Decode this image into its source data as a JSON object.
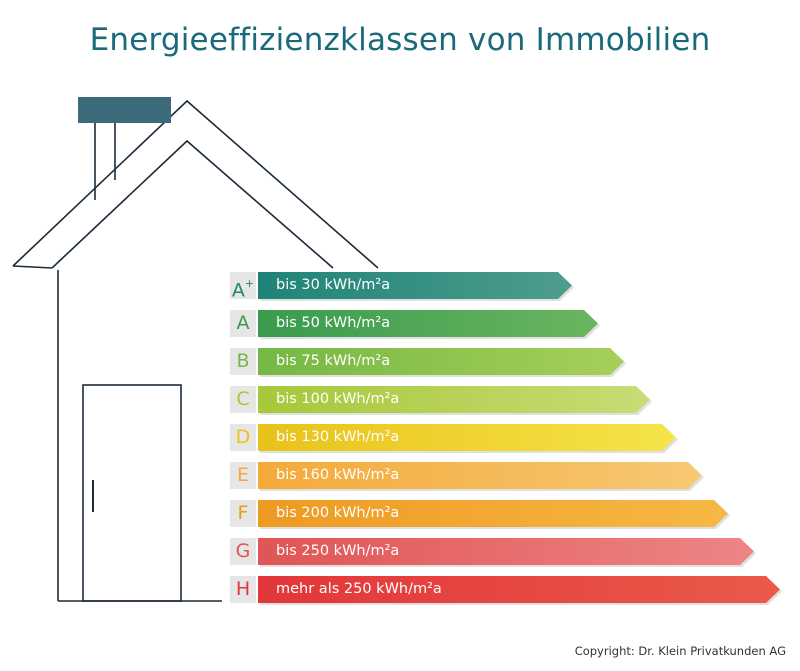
{
  "title": "Energieeffizienzklassen von Immobilien",
  "copyright": "Copyright: Dr. Klein Privatkunden AG",
  "colors": {
    "title": "#1a6a7c",
    "chimney": "#3d6b7c",
    "house_outline": "#1c2a3a",
    "label_bg": "#e6e6e6"
  },
  "classes": [
    {
      "letter": "A",
      "sup": "+",
      "label": "bis 30 kWh/m²a",
      "color_start": "#1e8477",
      "color_end": "#4e9d8d",
      "letter_color": "#1e8477"
    },
    {
      "letter": "A",
      "sup": "",
      "label": "bis 50 kWh/m²a",
      "color_start": "#3a9b4e",
      "color_end": "#6ab560",
      "letter_color": "#3a9b4e"
    },
    {
      "letter": "B",
      "sup": "",
      "label": "bis 75 kWh/m²a",
      "color_start": "#75b843",
      "color_end": "#a6cf5a",
      "letter_color": "#75b843"
    },
    {
      "letter": "C",
      "sup": "",
      "label": "bis 100 kWh/m²a",
      "color_start": "#a6c83a",
      "color_end": "#c8dc75",
      "letter_color": "#a6c83a"
    },
    {
      "letter": "D",
      "sup": "",
      "label": "bis 130 kWh/m²a",
      "color_start": "#e8c21a",
      "color_end": "#f6e44a",
      "letter_color": "#e8c21a"
    },
    {
      "letter": "E",
      "sup": "",
      "label": "bis 160 kWh/m²a",
      "color_start": "#f3aa3a",
      "color_end": "#f7c873",
      "letter_color": "#f3aa3a"
    },
    {
      "letter": "F",
      "sup": "",
      "label": "bis 200 kWh/m²a",
      "color_start": "#ee9a22",
      "color_end": "#f6b845",
      "letter_color": "#ee9a22"
    },
    {
      "letter": "G",
      "sup": "",
      "label": "bis 250 kWh/m²a",
      "color_start": "#e05555",
      "color_end": "#ee8585",
      "letter_color": "#e05555"
    },
    {
      "letter": "H",
      "sup": "",
      "label": "mehr als 250 kWh/m²a",
      "color_start": "#e2363a",
      "color_end": "#ea5a4a",
      "letter_color": "#e2363a"
    }
  ]
}
